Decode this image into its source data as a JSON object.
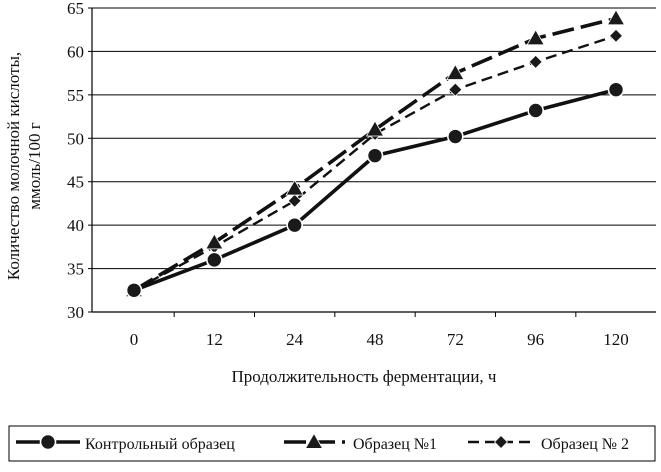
{
  "chart_data": {
    "type": "line",
    "title": "",
    "xlabel": "Продолжительность ферментации, ч",
    "ylabel_lines": [
      "Количество молочной кислоты,",
      "ммоль/100 г"
    ],
    "categories": [
      "0",
      "12",
      "24",
      "48",
      "72",
      "96",
      "120"
    ],
    "ylim": [
      30,
      65
    ],
    "yticks": [
      30,
      35,
      40,
      45,
      50,
      55,
      60,
      65
    ],
    "grid": "horizontal",
    "legend_placement": "bottom",
    "series": [
      {
        "name": "Контрольный образец",
        "marker": "circle",
        "dash": "solid",
        "values": [
          32.5,
          36.0,
          40.0,
          48.0,
          50.2,
          53.2,
          55.6
        ]
      },
      {
        "name": "Образец №1",
        "marker": "triangle",
        "dash": "long-dash",
        "values": [
          32.5,
          38.0,
          44.2,
          51.0,
          57.5,
          61.5,
          63.8
        ]
      },
      {
        "name": "Образец № 2",
        "marker": "diamond",
        "dash": "dash",
        "values": [
          32.5,
          37.5,
          42.8,
          50.5,
          55.6,
          58.8,
          61.8
        ]
      }
    ]
  }
}
